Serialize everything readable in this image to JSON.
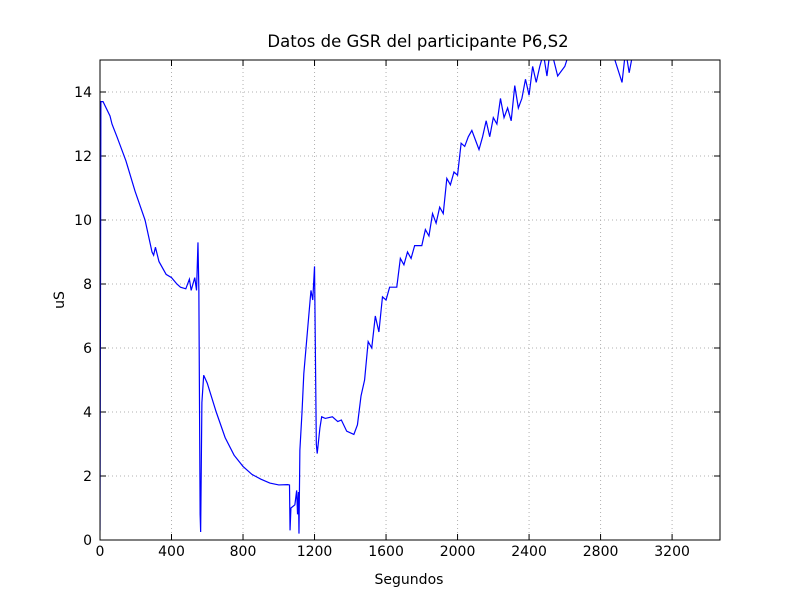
{
  "chart_data": {
    "type": "line",
    "title": "Datos de GSR del participante P6,S2",
    "x_label": "Segundos",
    "y_label": "uS",
    "color": "#0000ff",
    "xlim": [
      0,
      3468
    ],
    "ylim": [
      0,
      15
    ],
    "xticks": [
      0,
      400,
      800,
      1200,
      1600,
      2000,
      2400,
      2800,
      3200
    ],
    "yticks": [
      0,
      2,
      4,
      6,
      8,
      10,
      12,
      14
    ],
    "grid": true,
    "x": [
      0,
      5,
      17,
      56,
      67,
      95,
      145,
      196,
      252,
      291,
      300,
      310,
      330,
      370,
      400,
      430,
      450,
      480,
      500,
      510,
      530,
      540,
      548,
      553,
      560,
      563,
      570,
      580,
      600,
      650,
      700,
      750,
      800,
      850,
      900,
      950,
      1000,
      1050,
      1060,
      1063,
      1068,
      1090,
      1100,
      1105,
      1110,
      1113,
      1118,
      1130,
      1140,
      1160,
      1180,
      1190,
      1200,
      1210,
      1215,
      1230,
      1240,
      1260,
      1300,
      1330,
      1350,
      1380,
      1420,
      1440,
      1460,
      1480,
      1500,
      1520,
      1540,
      1560,
      1580,
      1600,
      1620,
      1660,
      1680,
      1700,
      1720,
      1740,
      1760,
      1800,
      1820,
      1840,
      1860,
      1880,
      1900,
      1920,
      1940,
      1960,
      1980,
      2000,
      2020,
      2040,
      2060,
      2080,
      2100,
      2120,
      2140,
      2160,
      2180,
      2200,
      2220,
      2240,
      2260,
      2280,
      2300,
      2320,
      2340,
      2360,
      2380,
      2400,
      2420,
      2440,
      2460,
      2480,
      2500,
      2520,
      2560,
      2600,
      2640,
      2800,
      2880,
      2920,
      2940,
      2960,
      2980,
      3000
    ],
    "values": [
      0.3,
      13.7,
      13.7,
      13.25,
      13.0,
      12.6,
      11.85,
      10.9,
      10.0,
      9.0,
      8.9,
      9.15,
      8.7,
      8.3,
      8.2,
      8.0,
      7.9,
      7.85,
      8.15,
      7.8,
      8.2,
      7.8,
      9.3,
      7.8,
      0.8,
      0.25,
      4.3,
      5.15,
      4.9,
      4.0,
      3.2,
      2.65,
      2.3,
      2.05,
      1.9,
      1.78,
      1.72,
      1.73,
      1.72,
      0.3,
      1.0,
      1.1,
      1.55,
      0.8,
      1.5,
      0.2,
      2.8,
      4.0,
      5.2,
      6.5,
      7.8,
      7.5,
      8.55,
      3.0,
      2.7,
      3.5,
      3.85,
      3.8,
      3.85,
      3.7,
      3.75,
      3.4,
      3.3,
      3.6,
      4.5,
      5.0,
      6.2,
      6.0,
      7.0,
      6.5,
      7.6,
      7.5,
      7.9,
      7.9,
      8.8,
      8.6,
      9.0,
      8.8,
      9.2,
      9.2,
      9.7,
      9.5,
      10.2,
      9.9,
      10.4,
      10.2,
      11.3,
      11.1,
      11.5,
      11.4,
      12.4,
      12.3,
      12.6,
      12.8,
      12.5,
      12.2,
      12.6,
      13.1,
      12.6,
      13.2,
      13.0,
      13.8,
      13.2,
      13.5,
      13.1,
      14.2,
      13.5,
      13.8,
      14.4,
      13.9,
      14.8,
      14.3,
      14.8,
      15.2,
      14.5,
      15.4,
      14.5,
      14.8,
      15.5,
      16.5,
      15.0,
      14.3,
      15.3,
      14.6,
      15.2,
      15.5
    ]
  }
}
